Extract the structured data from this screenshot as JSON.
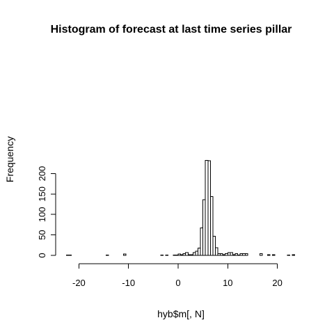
{
  "chart_data": {
    "type": "bar",
    "title": "Histogram of forecast at last time series pillar",
    "xlabel": "hyb$m[, N]",
    "ylabel": "Frequency",
    "xlim": [
      -23,
      24
    ],
    "ylim": [
      0,
      233
    ],
    "bin_width": 0.5,
    "xticks": [
      -20,
      -10,
      0,
      10,
      20
    ],
    "yticks": [
      0,
      50,
      100,
      150,
      200
    ],
    "bins": [
      {
        "x0": -22.5,
        "x1": -22.0,
        "count": 1
      },
      {
        "x0": -22.0,
        "x1": -21.5,
        "count": 1
      },
      {
        "x0": -14.5,
        "x1": -14.0,
        "count": 1
      },
      {
        "x0": -11.0,
        "x1": -10.5,
        "count": 3
      },
      {
        "x0": -3.5,
        "x1": -3.0,
        "count": 1
      },
      {
        "x0": -2.5,
        "x1": -2.0,
        "count": 1
      },
      {
        "x0": -1.0,
        "x1": -0.5,
        "count": 1
      },
      {
        "x0": -0.5,
        "x1": 0.0,
        "count": 1
      },
      {
        "x0": 0.0,
        "x1": 0.5,
        "count": 3
      },
      {
        "x0": 0.5,
        "x1": 1.0,
        "count": 2
      },
      {
        "x0": 1.0,
        "x1": 1.5,
        "count": 4
      },
      {
        "x0": 1.5,
        "x1": 2.0,
        "count": 7
      },
      {
        "x0": 2.0,
        "x1": 2.5,
        "count": 2
      },
      {
        "x0": 2.5,
        "x1": 3.0,
        "count": 2
      },
      {
        "x0": 3.0,
        "x1": 3.5,
        "count": 7
      },
      {
        "x0": 3.5,
        "x1": 4.0,
        "count": 10
      },
      {
        "x0": 4.0,
        "x1": 4.5,
        "count": 18
      },
      {
        "x0": 4.5,
        "x1": 5.0,
        "count": 67
      },
      {
        "x0": 5.0,
        "x1": 5.5,
        "count": 136
      },
      {
        "x0": 5.5,
        "x1": 6.0,
        "count": 232
      },
      {
        "x0": 6.0,
        "x1": 6.5,
        "count": 231
      },
      {
        "x0": 6.5,
        "x1": 7.0,
        "count": 144
      },
      {
        "x0": 7.0,
        "x1": 7.5,
        "count": 47
      },
      {
        "x0": 7.5,
        "x1": 8.0,
        "count": 19
      },
      {
        "x0": 8.0,
        "x1": 8.5,
        "count": 4
      },
      {
        "x0": 8.5,
        "x1": 9.0,
        "count": 4
      },
      {
        "x0": 9.0,
        "x1": 9.5,
        "count": 2
      },
      {
        "x0": 9.5,
        "x1": 10.0,
        "count": 4
      },
      {
        "x0": 10.0,
        "x1": 10.5,
        "count": 7
      },
      {
        "x0": 10.5,
        "x1": 11.0,
        "count": 7
      },
      {
        "x0": 11.0,
        "x1": 11.5,
        "count": 2
      },
      {
        "x0": 11.5,
        "x1": 12.0,
        "count": 4
      },
      {
        "x0": 12.0,
        "x1": 12.5,
        "count": 1
      },
      {
        "x0": 12.5,
        "x1": 13.0,
        "count": 4
      },
      {
        "x0": 13.0,
        "x1": 13.5,
        "count": 4
      },
      {
        "x0": 13.5,
        "x1": 14.0,
        "count": 4
      },
      {
        "x0": 16.5,
        "x1": 17.0,
        "count": 4
      },
      {
        "x0": 18.0,
        "x1": 18.5,
        "count": 2
      },
      {
        "x0": 19.0,
        "x1": 19.5,
        "count": 2
      },
      {
        "x0": 22.0,
        "x1": 22.5,
        "count": 1
      },
      {
        "x0": 23.0,
        "x1": 23.5,
        "count": 2
      }
    ],
    "grid": false,
    "legend": "none"
  }
}
